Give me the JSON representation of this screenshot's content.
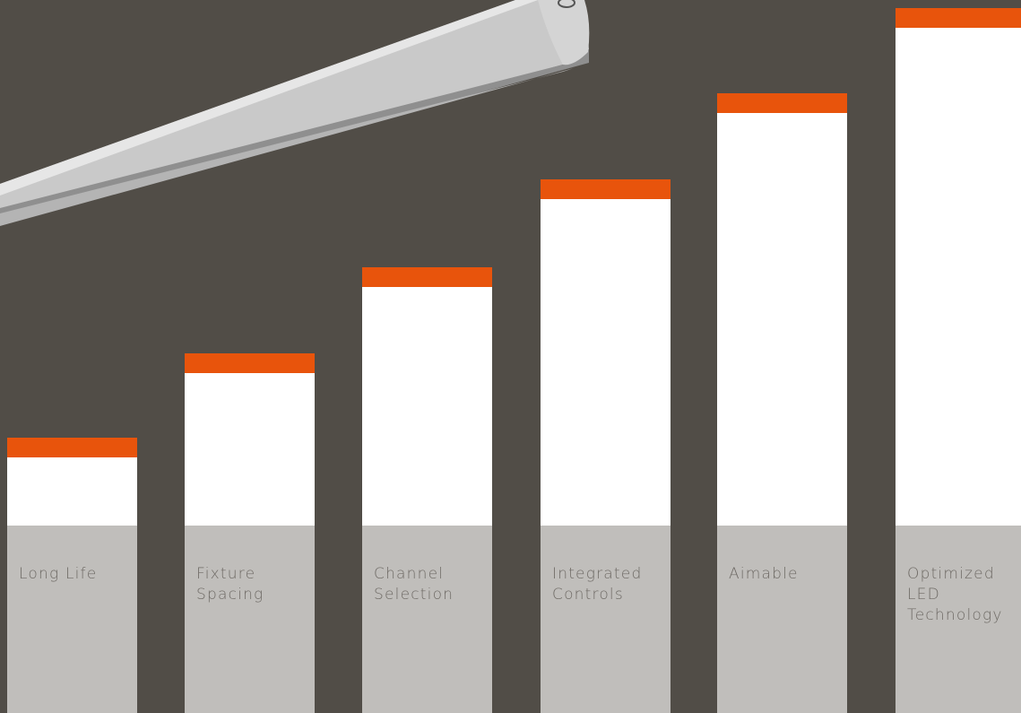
{
  "colors": {
    "background": "#514d47",
    "accent": "#e8540c",
    "bar": "#ffffff",
    "base": "#c0bebb",
    "label_text": "#6e6a65"
  },
  "features": [
    {
      "label": "Long Life",
      "level": 1
    },
    {
      "label": "Fixture Spacing",
      "level": 2
    },
    {
      "label": "Channel Selection",
      "level": 3
    },
    {
      "label": "Integrated Controls",
      "level": 4
    },
    {
      "label": "Aimable",
      "level": 5
    },
    {
      "label": "Optimized LED Technology",
      "level": 6
    }
  ]
}
